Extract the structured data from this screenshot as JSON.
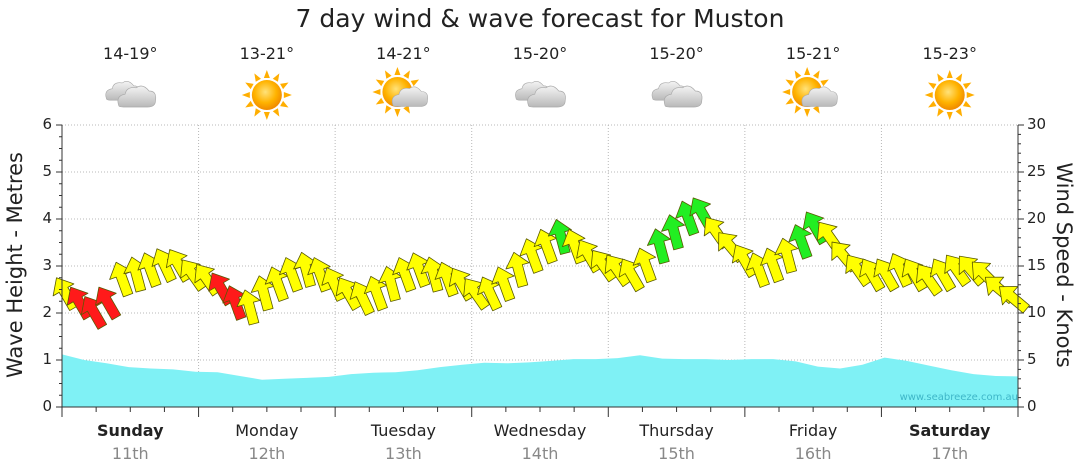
{
  "chart_data": {
    "type": "line",
    "title": "7 day wind & wave forecast for Muston",
    "ylabel_left": "Wave Height - Metres",
    "ylabel_right": "Wind Speed - Knots",
    "ylim_left": [
      0,
      6
    ],
    "ylim_right": [
      0,
      30
    ],
    "left_ticks": [
      "0",
      "1",
      "2",
      "3",
      "4",
      "5",
      "6"
    ],
    "right_ticks": [
      "0",
      "5",
      "10",
      "15",
      "20",
      "25",
      "30"
    ],
    "grid": true,
    "days": [
      {
        "name": "Sunday",
        "date": "11th",
        "temp": "14-19°",
        "weather": "cloudy-icon",
        "bold": true
      },
      {
        "name": "Monday",
        "date": "12th",
        "temp": "13-21°",
        "weather": "sunny-icon",
        "bold": false
      },
      {
        "name": "Tuesday",
        "date": "13th",
        "temp": "14-21°",
        "weather": "partly-cloudy-icon",
        "bold": false
      },
      {
        "name": "Wednesday",
        "date": "14th",
        "temp": "15-20°",
        "weather": "cloudy-icon",
        "bold": false
      },
      {
        "name": "Thursday",
        "date": "15th",
        "temp": "15-20°",
        "weather": "cloudy-icon",
        "bold": false
      },
      {
        "name": "Friday",
        "date": "16th",
        "temp": "15-21°",
        "weather": "partly-cloudy-icon",
        "bold": false
      },
      {
        "name": "Saturday",
        "date": "17th",
        "temp": "15-23°",
        "weather": "sunny-icon",
        "bold": true
      }
    ],
    "wave_height_m": [
      1.12,
      1.0,
      0.93,
      0.85,
      0.82,
      0.8,
      0.75,
      0.74,
      0.66,
      0.58,
      0.6,
      0.62,
      0.64,
      0.7,
      0.73,
      0.74,
      0.78,
      0.85,
      0.9,
      0.94,
      0.93,
      0.95,
      0.98,
      1.02,
      1.02,
      1.04,
      1.1,
      1.03,
      1.02,
      1.02,
      1.0,
      1.02,
      1.02,
      0.97,
      0.86,
      0.82,
      0.9,
      1.05,
      0.98,
      0.88,
      0.78,
      0.7,
      0.66,
      0.65
    ],
    "wind_knots": [
      12,
      11,
      10,
      11,
      13.5,
      14,
      14.5,
      15,
      15,
      14,
      13.5,
      12.5,
      11,
      10.5,
      12,
      13,
      14,
      14.5,
      14,
      13,
      12,
      11.5,
      12,
      13,
      14,
      14.5,
      14,
      13.5,
      13,
      12,
      12,
      13,
      14.5,
      16,
      17,
      18,
      17,
      16,
      15,
      14.5,
      14,
      15,
      17,
      18.5,
      20,
      20.5,
      18.5,
      17,
      15.5,
      14.5,
      15,
      16,
      17.5,
      19,
      18,
      16,
      14.5,
      14,
      14,
      14.5,
      14,
      13.5,
      14,
      14.5,
      14.5,
      14,
      12.5,
      11.5
    ],
    "wind_dir_deg": [
      150,
      150,
      150,
      150,
      160,
      165,
      160,
      155,
      150,
      145,
      145,
      150,
      160,
      165,
      165,
      160,
      160,
      165,
      160,
      155,
      150,
      155,
      160,
      165,
      160,
      160,
      165,
      160,
      150,
      145,
      155,
      160,
      165,
      160,
      160,
      165,
      160,
      150,
      145,
      145,
      150,
      160,
      165,
      165,
      160,
      150,
      145,
      140,
      150,
      160,
      160,
      165,
      160,
      150,
      145,
      140,
      145,
      150,
      150,
      155,
      150,
      145,
      150,
      145,
      140,
      135,
      130,
      130
    ],
    "wind_color_thresholds": {
      "calm": "#ffff00",
      "moderate": "#22ee22",
      "strong": "#ff1a1a"
    },
    "wind_colors": [
      "#ffff00",
      "#ff1a1a",
      "#ff1a1a",
      "#ff1a1a",
      "#ffff00",
      "#ffff00",
      "#ffff00",
      "#ffff00",
      "#ffff00",
      "#ffff00",
      "#ffff00",
      "#ff1a1a",
      "#ff1a1a",
      "#ffff00",
      "#ffff00",
      "#ffff00",
      "#ffff00",
      "#ffff00",
      "#ffff00",
      "#ffff00",
      "#ffff00",
      "#ffff00",
      "#ffff00",
      "#ffff00",
      "#ffff00",
      "#ffff00",
      "#ffff00",
      "#ffff00",
      "#ffff00",
      "#ffff00",
      "#ffff00",
      "#ffff00",
      "#ffff00",
      "#ffff00",
      "#ffff00",
      "#22ee22",
      "#ffff00",
      "#ffff00",
      "#ffff00",
      "#ffff00",
      "#ffff00",
      "#ffff00",
      "#22ee22",
      "#22ee22",
      "#22ee22",
      "#22ee22",
      "#ffff00",
      "#ffff00",
      "#ffff00",
      "#ffff00",
      "#ffff00",
      "#ffff00",
      "#22ee22",
      "#22ee22",
      "#ffff00",
      "#ffff00",
      "#ffff00",
      "#ffff00",
      "#ffff00",
      "#ffff00",
      "#ffff00",
      "#ffff00",
      "#ffff00",
      "#ffff00",
      "#ffff00",
      "#ffff00",
      "#ffff00",
      "#ffff00"
    ],
    "wave_color": "#7ff1f5",
    "watermark": "www.seabreeze.com.au"
  }
}
